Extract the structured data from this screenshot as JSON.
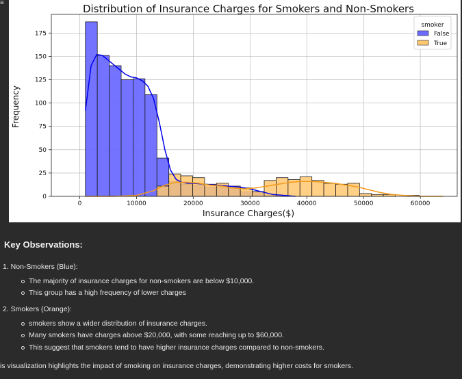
{
  "page": {
    "edge_glyph": "≡",
    "heading": "Key Observations:",
    "sections": [
      {
        "title": "1. Non-Smokers (Blue):",
        "bullets": [
          "The majority of insurance charges for non-smokers are below $10,000.",
          "This group has a high frequency of lower charges"
        ]
      },
      {
        "title": "2. Smokers (Orange):",
        "bullets": [
          "smokers show a wider distribution of insurance charges.",
          "Many smokers have charges above $20,000, with some reaching up to $60,000.",
          "This suggest that smokers tend to have higher insurance charges compared to non-smokers."
        ]
      }
    ],
    "conclusion": "is visualization highlights the impact of smoking on insurance charges, demonstrating higher costs for smokers."
  },
  "chart_data": {
    "type": "bar",
    "title": "Distribution of Insurance Charges for Smokers and Non-Smokers",
    "xlabel": "Insurance Charges($)",
    "ylabel": "Frequency",
    "xlim": [
      -5000,
      66500
    ],
    "ylim": [
      0,
      195
    ],
    "xticks": [
      0,
      10000,
      20000,
      30000,
      40000,
      50000,
      60000
    ],
    "xtick_labels": [
      "0",
      "10000",
      "20000",
      "30000",
      "40000",
      "50000",
      "60000"
    ],
    "yticks": [
      0,
      25,
      50,
      75,
      100,
      125,
      150,
      175
    ],
    "ytick_labels": [
      "0",
      "25",
      "50",
      "75",
      "100",
      "125",
      "150",
      "175"
    ],
    "grid": true,
    "legend": {
      "title": "smoker",
      "placement": "top-right"
    },
    "bin_start": 1000,
    "bin_width": 2100,
    "series": [
      {
        "name": "False",
        "color": "#6b6bff",
        "kde_color": "#0000ee",
        "values": [
          187,
          151,
          140,
          125,
          126,
          109,
          41,
          16,
          13,
          12,
          10,
          10,
          9,
          5,
          5,
          1,
          1,
          0,
          0,
          0,
          0,
          0,
          0,
          0,
          0,
          0,
          0,
          0
        ],
        "kde": [
          [
            1000,
            92
          ],
          [
            2000,
            140
          ],
          [
            3000,
            152
          ],
          [
            4000,
            151
          ],
          [
            5000,
            146
          ],
          [
            6000,
            141
          ],
          [
            7000,
            136
          ],
          [
            8000,
            131
          ],
          [
            9000,
            128
          ],
          [
            10000,
            127
          ],
          [
            11000,
            124
          ],
          [
            12000,
            118
          ],
          [
            13000,
            105
          ],
          [
            14000,
            80
          ],
          [
            15000,
            50
          ],
          [
            16000,
            28
          ],
          [
            17000,
            18
          ],
          [
            18000,
            15
          ],
          [
            19000,
            14
          ],
          [
            20000,
            14
          ],
          [
            22000,
            13
          ],
          [
            24000,
            12
          ],
          [
            26000,
            11
          ],
          [
            28000,
            10
          ],
          [
            30000,
            8
          ],
          [
            32000,
            5
          ],
          [
            34000,
            2
          ],
          [
            36000,
            1
          ],
          [
            38000,
            0
          ]
        ]
      },
      {
        "name": "True",
        "color": "#ffc870",
        "kde_color": "#f29a1b",
        "values": [
          0,
          0,
          0,
          0,
          0,
          0,
          11,
          24,
          22,
          20,
          13,
          14,
          11,
          9,
          5,
          17,
          20,
          18,
          21,
          17,
          14,
          13,
          14,
          3,
          2,
          2,
          0,
          1
        ],
        "kde": [
          [
            1000,
            0
          ],
          [
            6000,
            0
          ],
          [
            10000,
            1
          ],
          [
            13000,
            6
          ],
          [
            15000,
            12
          ],
          [
            17000,
            15
          ],
          [
            19000,
            15
          ],
          [
            21000,
            14
          ],
          [
            23000,
            12
          ],
          [
            25000,
            11
          ],
          [
            27000,
            9
          ],
          [
            29000,
            8
          ],
          [
            31000,
            9
          ],
          [
            33000,
            11
          ],
          [
            35000,
            13
          ],
          [
            37000,
            15
          ],
          [
            39000,
            16
          ],
          [
            41000,
            16
          ],
          [
            43000,
            15
          ],
          [
            45000,
            14
          ],
          [
            47000,
            12
          ],
          [
            49000,
            10
          ],
          [
            51000,
            7
          ],
          [
            53000,
            4
          ],
          [
            55000,
            2
          ],
          [
            57000,
            1
          ],
          [
            60000,
            0
          ],
          [
            64000,
            0
          ]
        ]
      }
    ]
  }
}
